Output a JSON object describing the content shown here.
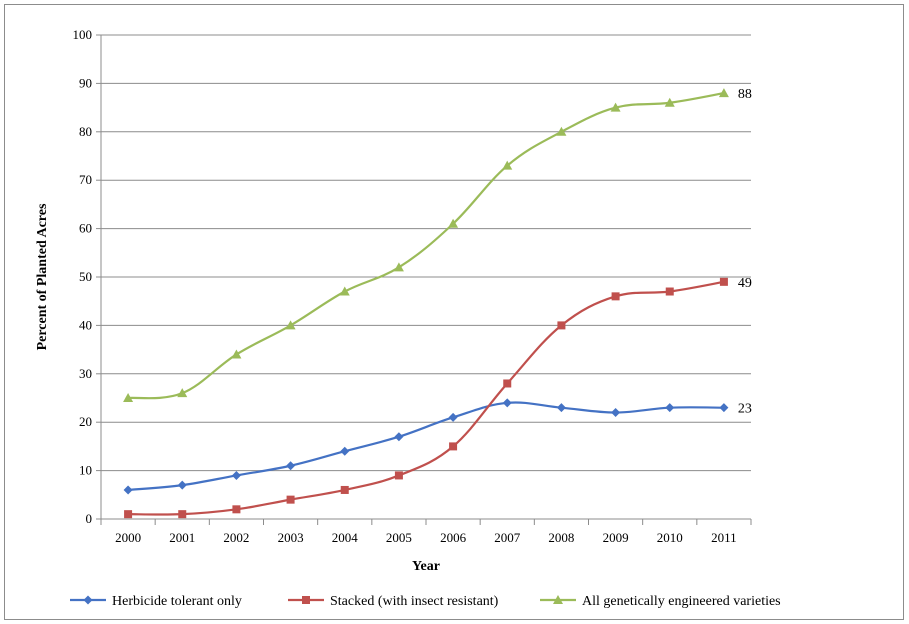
{
  "chart_data": {
    "type": "line",
    "title": "",
    "xlabel": "Year",
    "ylabel": "Percent of Planted Acres",
    "ylim": [
      0,
      100
    ],
    "yticks": [
      0,
      10,
      20,
      30,
      40,
      50,
      60,
      70,
      80,
      90,
      100
    ],
    "grid": "horizontal",
    "legend_position": "bottom",
    "categories": [
      "2000",
      "2001",
      "2002",
      "2003",
      "2004",
      "2005",
      "2006",
      "2007",
      "2008",
      "2009",
      "2010",
      "2011"
    ],
    "series": [
      {
        "name": "Herbicide tolerant only",
        "color": "#4472c4",
        "marker": "diamond",
        "values": [
          6,
          7,
          9,
          11,
          14,
          17,
          21,
          24,
          23,
          22,
          23,
          23
        ],
        "end_label": "23"
      },
      {
        "name": "Stacked (with insect resistant)",
        "color": "#c0504d",
        "marker": "square",
        "values": [
          1,
          1,
          2,
          4,
          6,
          9,
          15,
          28,
          40,
          46,
          47,
          49
        ],
        "end_label": "49"
      },
      {
        "name": "All genetically engineered varieties",
        "color": "#9bbb59",
        "marker": "triangle",
        "values": [
          25,
          26,
          34,
          40,
          47,
          52,
          61,
          73,
          80,
          85,
          86,
          88
        ],
        "end_label": "88"
      }
    ]
  }
}
